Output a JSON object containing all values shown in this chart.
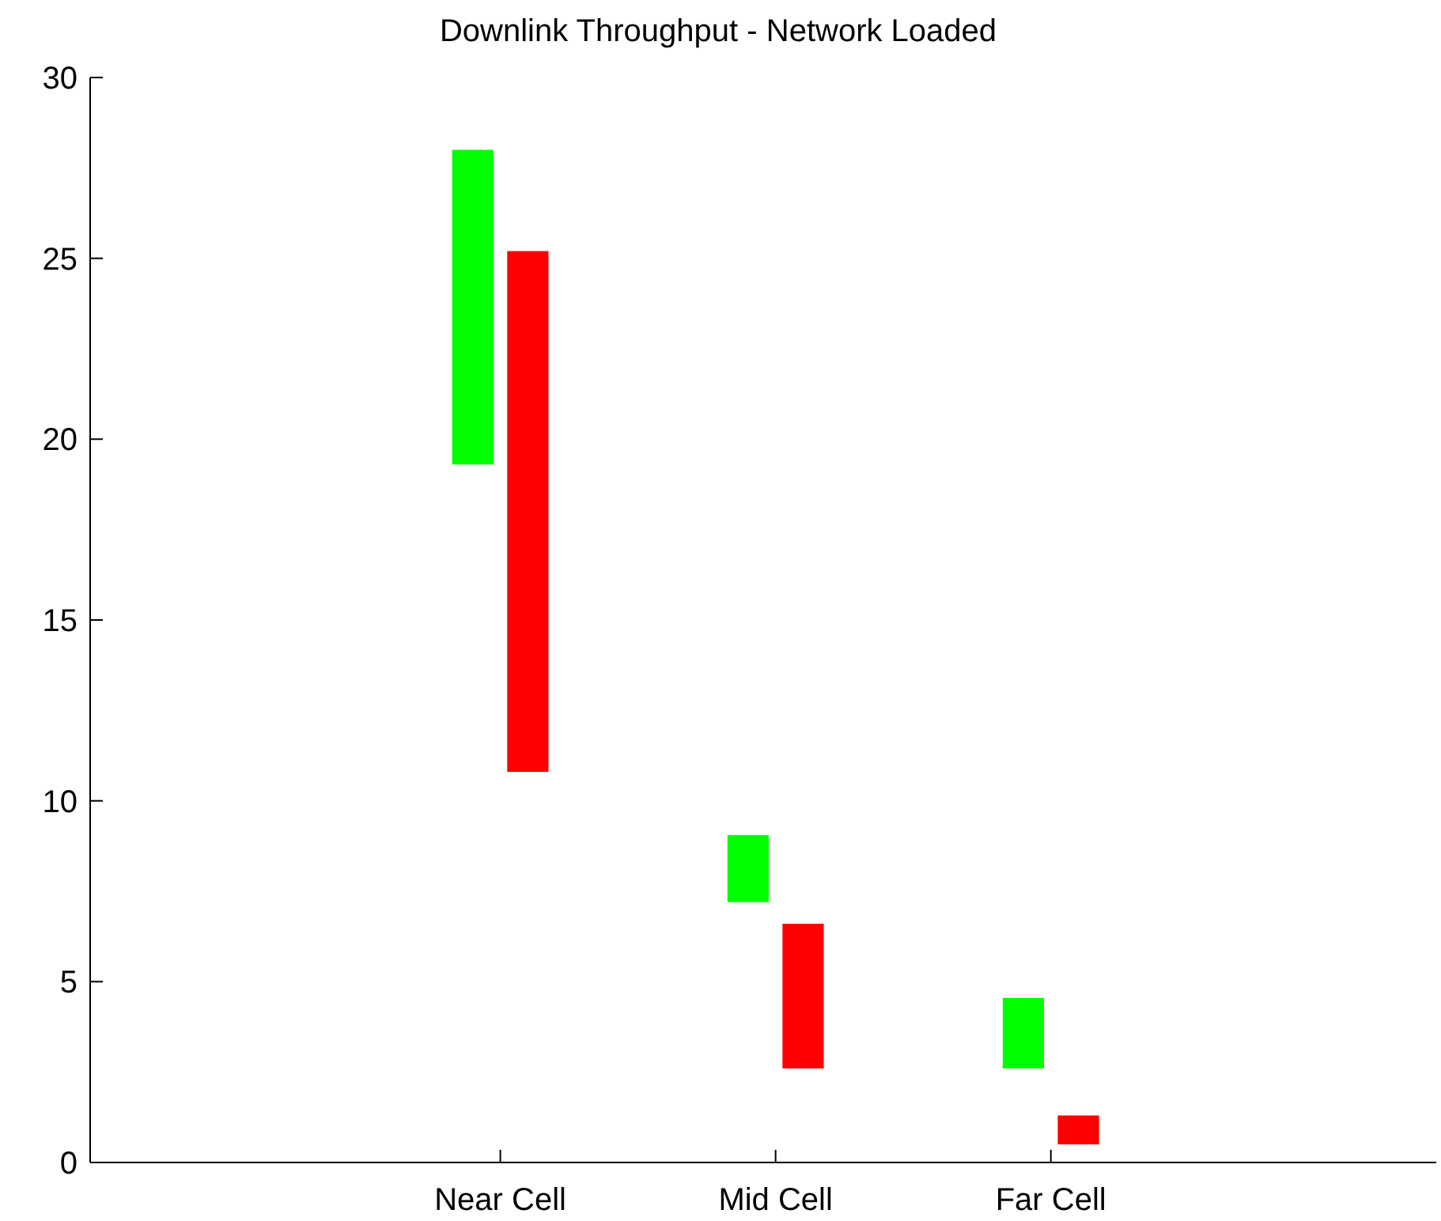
{
  "chart_data": {
    "type": "bar",
    "title": "Downlink Throughput - Network Loaded",
    "categories": [
      "Near Cell",
      "Mid Cell",
      "Far Cell"
    ],
    "series": [
      {
        "color": "#00ff00",
        "base": [
          19.3,
          7.2,
          2.6
        ],
        "values": [
          8.7,
          1.85,
          1.95
        ]
      },
      {
        "color": "#ff0000",
        "base": [
          10.8,
          2.6,
          0.5
        ],
        "values": [
          14.4,
          4.0,
          0.8
        ]
      }
    ],
    "ylim": [
      0,
      30
    ],
    "yticks": [
      0,
      5,
      10,
      15,
      20,
      25,
      30
    ],
    "grid": false
  }
}
